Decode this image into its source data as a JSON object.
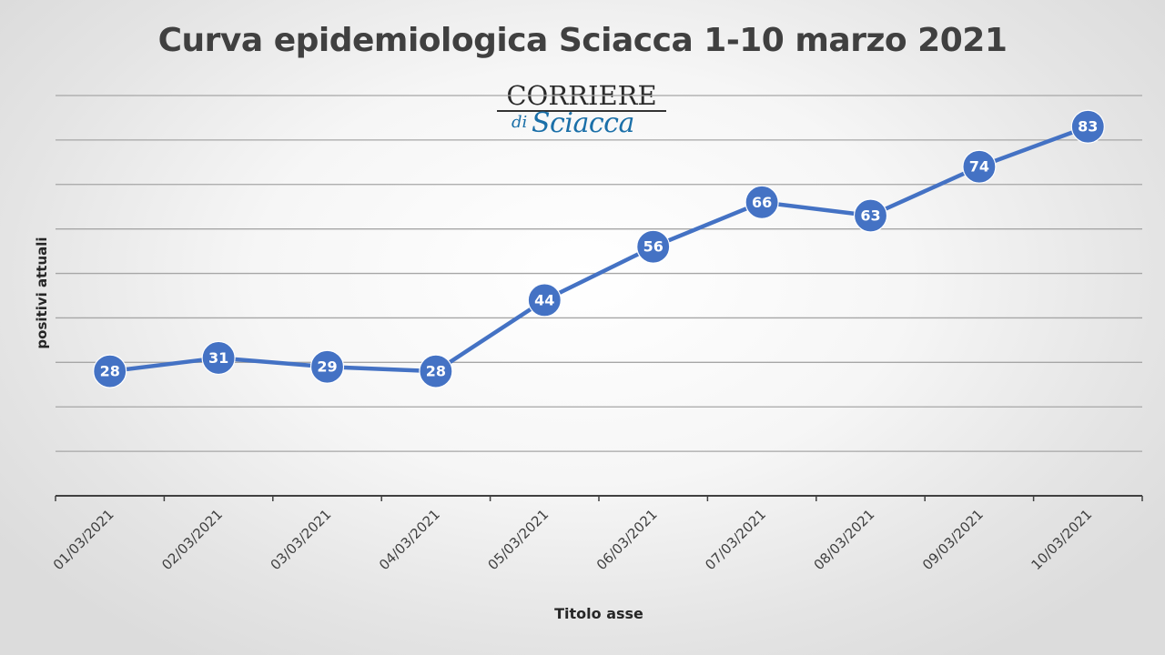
{
  "chart_data": {
    "type": "line",
    "title": "Curva epidemiologica Sciacca 1-10 marzo 2021",
    "xlabel": "Titolo asse",
    "ylabel": "positivi attuali",
    "categories": [
      "01/03/2021",
      "02/03/2021",
      "03/03/2021",
      "04/03/2021",
      "05/03/2021",
      "06/03/2021",
      "07/03/2021",
      "08/03/2021",
      "09/03/2021",
      "10/03/2021"
    ],
    "series": [
      {
        "values": [
          28,
          31,
          29,
          28,
          44,
          56,
          66,
          63,
          74,
          83
        ]
      }
    ],
    "ylim": [
      0,
      90
    ],
    "y_grid_step": 10,
    "grid": true,
    "data_labels": true,
    "y_tick_labels_visible": false,
    "legend": "none",
    "colors": {
      "line": "#4472c4",
      "marker": "#4472c4",
      "gridline": "#a6a6a6",
      "axis": "#404040",
      "label_text": "#ffffff"
    }
  },
  "logo": {
    "top_text": "CORRIERE",
    "di_text": "di",
    "name_text": "Sciacca"
  }
}
